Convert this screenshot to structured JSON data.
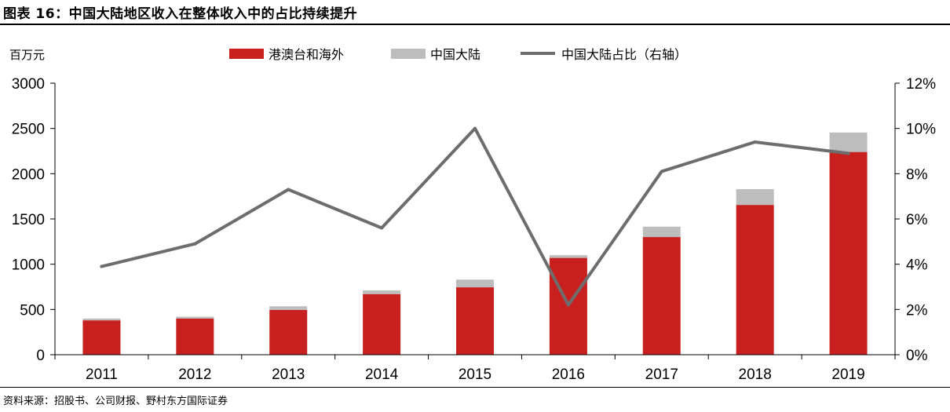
{
  "figure": {
    "title": "图表 16：中国大陆地区收入在整体收入中的占比持续提升",
    "source": "资料来源：招股书、公司财报、野村东方国际证券"
  },
  "chart_data": {
    "type": "bar",
    "stacked": true,
    "title": "图表 16：中国大陆地区收入在整体收入中的占比持续提升",
    "ylabel": "百万元",
    "y2label": "",
    "categories": [
      "2011",
      "2012",
      "2013",
      "2014",
      "2015",
      "2016",
      "2017",
      "2018",
      "2019"
    ],
    "ylim": [
      0,
      3000
    ],
    "yticks": [
      "0",
      "500",
      "1000",
      "1500",
      "2000",
      "2500",
      "3000"
    ],
    "y2lim": [
      0,
      12
    ],
    "y2ticks": [
      "0%",
      "2%",
      "4%",
      "6%",
      "8%",
      "10%",
      "12%"
    ],
    "grid": false,
    "legend_position": "top",
    "series": [
      {
        "name": "港澳台和海外",
        "kind": "bar",
        "axis": "left",
        "color": "#c8201f",
        "values": [
          380,
          400,
          495,
          670,
          745,
          1070,
          1300,
          1655,
          2240
        ]
      },
      {
        "name": "中国大陆",
        "kind": "bar",
        "axis": "left",
        "color": "#bdbdbd",
        "values": [
          20,
          20,
          40,
          40,
          85,
          30,
          115,
          175,
          215
        ]
      },
      {
        "name": "中国大陆占比（右轴）",
        "kind": "line",
        "axis": "right",
        "color": "#6d6d6d",
        "values": [
          3.9,
          4.9,
          7.3,
          5.6,
          10.0,
          2.2,
          8.1,
          9.4,
          8.9
        ]
      }
    ]
  }
}
